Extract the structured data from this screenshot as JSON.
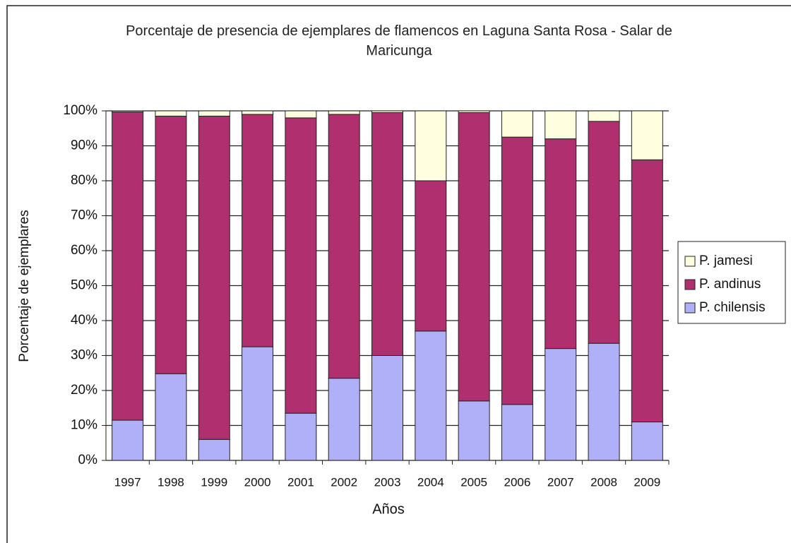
{
  "chart_data": {
    "type": "stacked_bar",
    "title": "Porcentaje de presencia de ejemplares de flamencos en Laguna Santa Rosa - Salar de Maricunga",
    "x_label": "Años",
    "y_label": "Porcentaje de ejemplares",
    "categories": [
      "1997",
      "1998",
      "1999",
      "2000",
      "2001",
      "2002",
      "2003",
      "2004",
      "2005",
      "2006",
      "2007",
      "2008",
      "2009"
    ],
    "series": [
      {
        "name": "P. chilensis",
        "color": "#b0b0f8",
        "values": [
          11.5,
          24.8,
          6,
          32.5,
          13.5,
          23.5,
          30,
          37,
          17,
          16,
          32,
          33.5,
          11
        ]
      },
      {
        "name": "P. andinus",
        "color": "#b0306f",
        "values": [
          88.2,
          73.7,
          92.5,
          66.5,
          84.5,
          75.5,
          69.5,
          43,
          82.5,
          76.5,
          60,
          63.5,
          75
        ]
      },
      {
        "name": "P. jamesi",
        "color": "#ffffdf",
        "values": [
          0.3,
          1.5,
          1.5,
          1,
          2,
          1,
          0.5,
          20,
          0.5,
          7.5,
          8,
          3,
          14
        ]
      }
    ],
    "ylim": [
      0,
      100
    ],
    "yticks": [
      {
        "value": 0,
        "label": "0%"
      },
      {
        "value": 10,
        "label": "10%"
      },
      {
        "value": 20,
        "label": "20%"
      },
      {
        "value": 30,
        "label": "30%"
      },
      {
        "value": 40,
        "label": "40%"
      },
      {
        "value": 50,
        "label": "50%"
      },
      {
        "value": 60,
        "label": "60%"
      },
      {
        "value": 70,
        "label": "70%"
      },
      {
        "value": 80,
        "label": "80%"
      },
      {
        "value": 90,
        "label": "90%"
      },
      {
        "value": 100,
        "label": "100%"
      }
    ],
    "grid": true,
    "legend": "right"
  }
}
